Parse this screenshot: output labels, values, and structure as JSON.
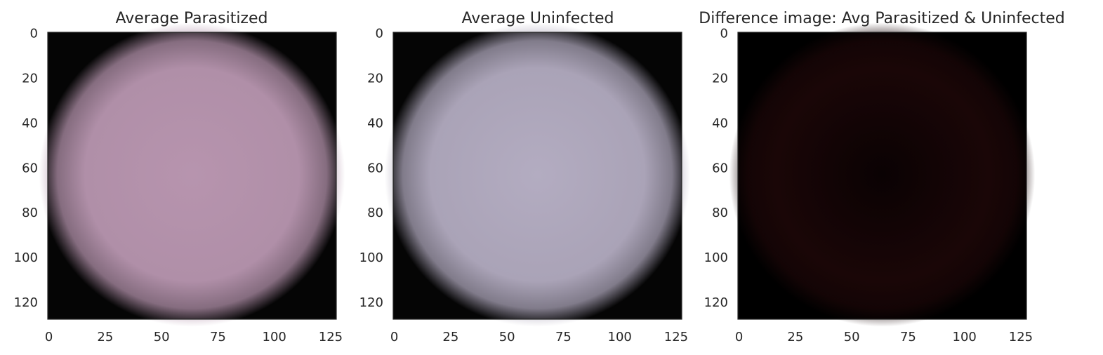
{
  "chart_data": [
    {
      "type": "heatmap",
      "title": "Average Parasitized",
      "image_size": [
        128,
        128
      ],
      "xlim": [
        0,
        128
      ],
      "ylim": [
        128,
        0
      ],
      "x_ticks": [
        0,
        25,
        50,
        75,
        100,
        125
      ],
      "y_ticks": [
        0,
        20,
        40,
        60,
        80,
        100,
        120
      ],
      "content": "circular cell, pink-mauve on black background",
      "colors": {
        "cell": "#b08fa8",
        "cell_center": "#b794ae",
        "background": "#050505"
      }
    },
    {
      "type": "heatmap",
      "title": "Average Uninfected",
      "image_size": [
        128,
        128
      ],
      "xlim": [
        0,
        128
      ],
      "ylim": [
        128,
        0
      ],
      "x_ticks": [
        0,
        25,
        50,
        75,
        100,
        125
      ],
      "y_ticks": [
        0,
        20,
        40,
        60,
        80,
        100,
        120
      ],
      "content": "circular cell, pale lavender-gray on black background",
      "colors": {
        "cell": "#aaa3b7",
        "cell_center": "#b3acc1",
        "background": "#050505"
      }
    },
    {
      "type": "heatmap",
      "title": "Difference image: Avg Parasitized & Uninfected",
      "image_size": [
        128,
        128
      ],
      "xlim": [
        0,
        128
      ],
      "ylim": [
        128,
        0
      ],
      "x_ticks": [
        0,
        25,
        50,
        75,
        100,
        125
      ],
      "y_ticks": [
        0,
        20,
        40,
        60,
        80,
        100,
        120
      ],
      "content": "near-black difference image with faint dark red ring",
      "colors": {
        "cell": "#1a0607",
        "cell_center": "#0a0203",
        "background": "#000000"
      }
    }
  ]
}
